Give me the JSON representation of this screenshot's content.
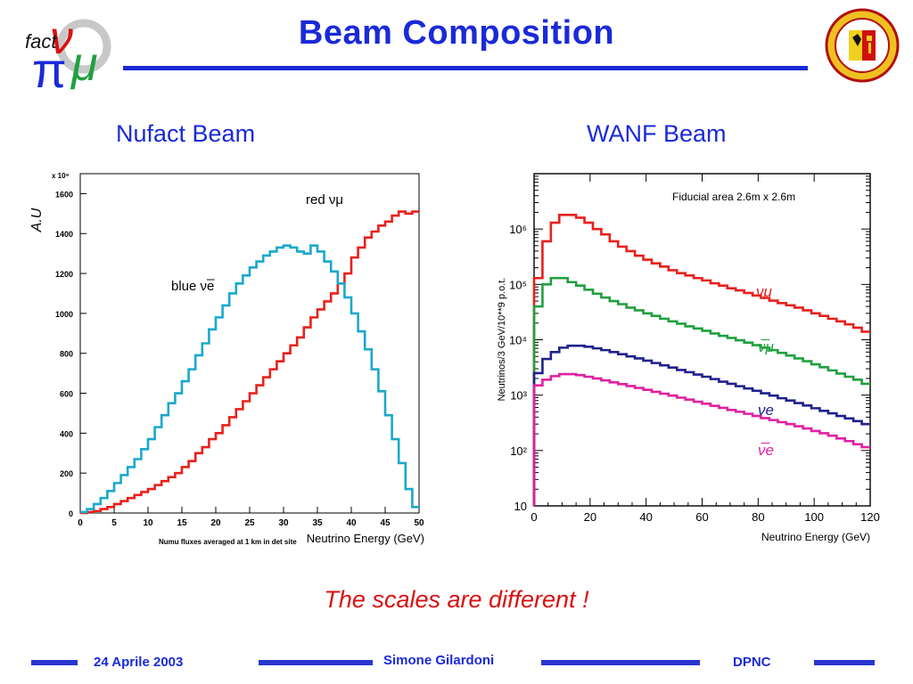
{
  "slide": {
    "title": "Beam Composition",
    "note": "The scales are different !"
  },
  "footer": {
    "date": "24 Aprile 2003",
    "author": "Simone Gilardoni",
    "institute": "DPNC"
  },
  "logo_left": {
    "icon": "nufact-logo",
    "text": "fact"
  },
  "logo_right": {
    "icon": "geneva-university-seal"
  },
  "colors": {
    "title": "#1a2ad8",
    "red": "#e8201c",
    "cyan": "#1aa8cc",
    "green": "#20a040",
    "navy": "#20208c",
    "magenta": "#e020a0",
    "footer_bar": "#2a36d0"
  },
  "chart_data": [
    {
      "type": "line",
      "step": true,
      "title": "Nufact Beam",
      "xlabel": "Neutrino Energy (GeV)",
      "ylabel": "A.U",
      "y_multiplier": "x 10⁹",
      "caption": "Numu fluxes averaged at 1 km in det site",
      "xlim": [
        0,
        50
      ],
      "ylim": [
        0,
        1700
      ],
      "x_ticks": [
        0,
        5,
        10,
        15,
        20,
        25,
        30,
        35,
        40,
        45,
        50
      ],
      "y_ticks": [
        0,
        200,
        400,
        600,
        800,
        1000,
        1200,
        1400,
        1600
      ],
      "bin_width": 1,
      "series": [
        {
          "name": "red νμ",
          "color": "#e8201c",
          "x": [
            1,
            2,
            3,
            4,
            5,
            6,
            7,
            8,
            9,
            10,
            11,
            12,
            13,
            14,
            15,
            16,
            17,
            18,
            19,
            20,
            21,
            22,
            23,
            24,
            25,
            26,
            27,
            28,
            29,
            30,
            31,
            32,
            33,
            34,
            35,
            36,
            37,
            38,
            39,
            40,
            41,
            42,
            43,
            44,
            45,
            46,
            47,
            48,
            49,
            50
          ],
          "values": [
            0,
            5,
            10,
            20,
            30,
            45,
            60,
            75,
            90,
            105,
            120,
            140,
            160,
            180,
            200,
            230,
            260,
            300,
            330,
            370,
            400,
            440,
            480,
            520,
            560,
            600,
            640,
            680,
            720,
            760,
            800,
            840,
            880,
            930,
            980,
            1020,
            1060,
            1100,
            1150,
            1200,
            1280,
            1330,
            1380,
            1410,
            1440,
            1460,
            1490,
            1510,
            1500,
            1510
          ]
        },
        {
          "name": "blue νe̅",
          "color": "#1aa8cc",
          "x": [
            1,
            2,
            3,
            4,
            5,
            6,
            7,
            8,
            9,
            10,
            11,
            12,
            13,
            14,
            15,
            16,
            17,
            18,
            19,
            20,
            21,
            22,
            23,
            24,
            25,
            26,
            27,
            28,
            29,
            30,
            31,
            32,
            33,
            34,
            35,
            36,
            37,
            38,
            39,
            40,
            41,
            42,
            43,
            44,
            45,
            46,
            47,
            48,
            49,
            50
          ],
          "values": [
            5,
            20,
            45,
            75,
            110,
            150,
            190,
            230,
            270,
            320,
            370,
            430,
            490,
            550,
            600,
            660,
            720,
            790,
            850,
            920,
            980,
            1040,
            1100,
            1150,
            1190,
            1230,
            1260,
            1290,
            1310,
            1330,
            1340,
            1330,
            1310,
            1300,
            1340,
            1310,
            1260,
            1210,
            1150,
            1080,
            1000,
            910,
            820,
            720,
            610,
            490,
            370,
            250,
            120,
            30
          ]
        }
      ]
    },
    {
      "type": "line",
      "step": true,
      "title": "WANF Beam",
      "xlabel": "Neutrino Energy (GeV)",
      "ylabel": "Neutrinos/3 GeV/10**9 p.o.t.",
      "annotation": "Fiducial area 2.6m x 2.6m",
      "xscale": "linear",
      "yscale": "log",
      "xlim": [
        0,
        120
      ],
      "ylim": [
        10,
        10000000
      ],
      "x_ticks": [
        0,
        20,
        40,
        60,
        80,
        100,
        120
      ],
      "y_ticks": [
        10,
        100,
        1000,
        10000,
        100000,
        1000000
      ],
      "y_tick_labels": [
        "10",
        "10²",
        "10³",
        "10⁴",
        "10⁵",
        "10⁶"
      ],
      "x": [
        1.5,
        4.5,
        7.5,
        10.5,
        13.5,
        16.5,
        19.5,
        22.5,
        25.5,
        28.5,
        31.5,
        34.5,
        37.5,
        40.5,
        43.5,
        46.5,
        49.5,
        52.5,
        55.5,
        58.5,
        61.5,
        64.5,
        67.5,
        70.5,
        73.5,
        76.5,
        79.5,
        82.5,
        85.5,
        88.5,
        91.5,
        94.5,
        97.5,
        100.5,
        103.5,
        106.5,
        109.5,
        112.5,
        115.5,
        118.5
      ],
      "series": [
        {
          "name": "νμ",
          "color": "#e8201c",
          "values": [
            130000,
            600000,
            1300000,
            1800000,
            1800000,
            1600000,
            1300000,
            1000000,
            800000,
            600000,
            480000,
            400000,
            330000,
            280000,
            240000,
            210000,
            180000,
            160000,
            145000,
            130000,
            118000,
            105000,
            95000,
            85000,
            78000,
            70000,
            63000,
            57000,
            51000,
            46000,
            42000,
            38000,
            34000,
            30000,
            27000,
            24000,
            21500,
            19000,
            16500,
            14000
          ]
        },
        {
          "name": "ν̅μ",
          "color": "#20a040",
          "values": [
            40000,
            100000,
            130000,
            130000,
            110000,
            95000,
            80000,
            68000,
            58000,
            50000,
            44000,
            38000,
            34000,
            30000,
            27000,
            24000,
            21500,
            19500,
            17500,
            16000,
            14500,
            13000,
            11800,
            10800,
            9800,
            8900,
            8000,
            7200,
            6500,
            5800,
            5200,
            4600,
            4100,
            3600,
            3200,
            2800,
            2450,
            2150,
            1900,
            1600
          ]
        },
        {
          "name": "νe",
          "color": "#20208c",
          "values": [
            2500,
            4500,
            6000,
            7200,
            7800,
            7800,
            7500,
            7000,
            6500,
            6000,
            5500,
            5000,
            4600,
            4200,
            3800,
            3450,
            3150,
            2850,
            2600,
            2350,
            2150,
            1950,
            1750,
            1600,
            1450,
            1320,
            1200,
            1080,
            980,
            880,
            800,
            720,
            650,
            580,
            520,
            470,
            420,
            380,
            340,
            300
          ]
        },
        {
          "name": "ν̅e",
          "color": "#e020a0",
          "values": [
            1500,
            1900,
            2200,
            2400,
            2400,
            2300,
            2150,
            2000,
            1850,
            1700,
            1580,
            1460,
            1350,
            1250,
            1150,
            1060,
            980,
            900,
            830,
            760,
            700,
            640,
            590,
            540,
            500,
            460,
            420,
            385,
            355,
            325,
            300,
            275,
            250,
            225,
            205,
            185,
            165,
            148,
            130,
            115
          ]
        }
      ]
    }
  ]
}
